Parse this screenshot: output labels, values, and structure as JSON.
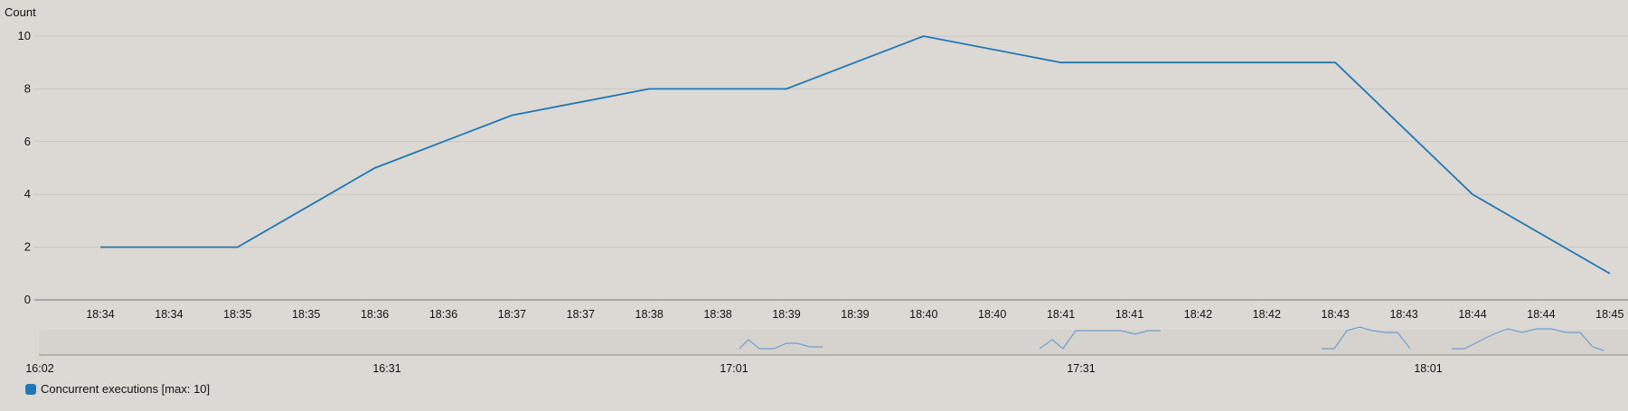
{
  "chart_data": {
    "type": "line",
    "ylabel": "Count",
    "yticks": [
      0,
      2,
      4,
      6,
      8,
      10
    ],
    "ylim": [
      0,
      10
    ],
    "grid": true,
    "x_tick_labels": [
      "18:34",
      "18:34",
      "18:35",
      "18:35",
      "18:36",
      "18:36",
      "18:37",
      "18:37",
      "18:38",
      "18:38",
      "18:39",
      "18:39",
      "18:40",
      "18:40",
      "18:41",
      "18:41",
      "18:42",
      "18:42",
      "18:43",
      "18:43",
      "18:44",
      "18:44",
      "18:45"
    ],
    "series": [
      {
        "name": "Concurrent executions [max: 10]",
        "color": "#1f77b4",
        "values": [
          2,
          2,
          5,
          7,
          8,
          8,
          10,
          9,
          9,
          9,
          4,
          1
        ]
      }
    ],
    "navigator": {
      "labels": [
        "16:02",
        "16:31",
        "17:01",
        "17:31",
        "18:01"
      ]
    },
    "legend_position": "bottom-left"
  }
}
